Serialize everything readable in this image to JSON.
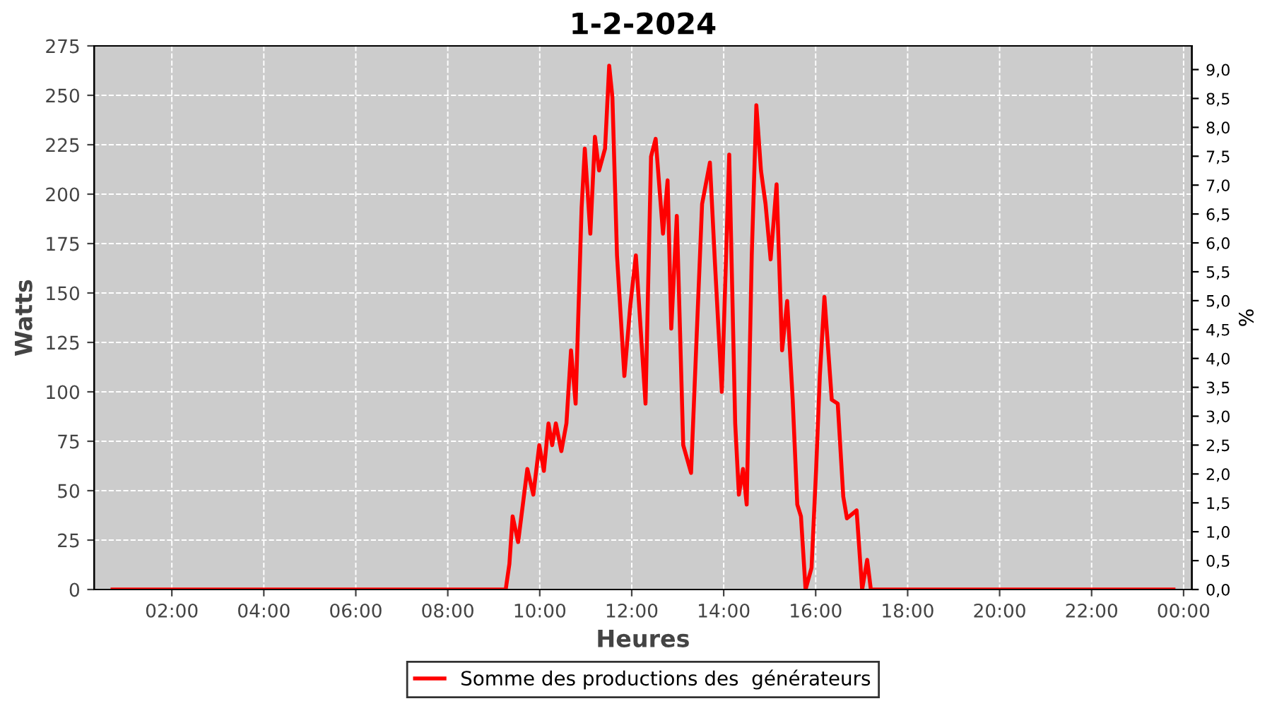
{
  "chart_data": {
    "type": "line",
    "title": "1-2-2024",
    "xlabel": "Heures",
    "ylabel": "Watts",
    "y2label": "%",
    "x": [
      0.71,
      9.26,
      9.34,
      9.41,
      9.53,
      9.73,
      9.86,
      9.99,
      10.09,
      10.19,
      10.27,
      10.35,
      10.47,
      10.58,
      10.68,
      10.78,
      10.91,
      10.98,
      11.1,
      11.2,
      11.29,
      11.42,
      11.51,
      11.58,
      11.68,
      11.84,
      11.97,
      12.09,
      12.3,
      12.42,
      12.52,
      12.68,
      12.78,
      12.86,
      12.98,
      13.12,
      13.29,
      13.53,
      13.7,
      13.81,
      13.96,
      14.12,
      14.25,
      14.33,
      14.42,
      14.5,
      14.61,
      14.71,
      14.81,
      14.91,
      15.02,
      15.15,
      15.27,
      15.38,
      15.5,
      15.6,
      15.68,
      15.78,
      15.91,
      16.01,
      16.09,
      16.19,
      16.35,
      16.48,
      16.6,
      16.68,
      16.89,
      17.01,
      17.12,
      17.2,
      23.78
    ],
    "series": [
      {
        "name": "Somme des productions des  générateurs",
        "color": "#ff0000",
        "values": [
          0,
          0,
          13,
          37,
          24,
          61,
          48,
          73,
          60,
          84,
          73,
          84,
          70,
          84,
          121,
          94,
          193,
          223,
          180,
          229,
          212,
          223,
          265,
          249,
          169,
          108,
          144,
          169,
          94,
          219,
          228,
          180,
          207,
          132,
          189,
          73,
          59,
          195,
          216,
          165,
          100,
          220,
          84,
          48,
          61,
          43,
          169,
          245,
          212,
          195,
          167,
          205,
          121,
          146,
          96,
          43,
          37,
          0,
          11,
          61,
          108,
          148,
          96,
          94,
          47,
          36,
          40,
          0,
          15,
          0,
          0
        ]
      }
    ],
    "xlim": [
      0.31,
      24.18
    ],
    "xticks": [
      {
        "value": 2,
        "label": "02:00"
      },
      {
        "value": 4,
        "label": "04:00"
      },
      {
        "value": 6,
        "label": "06:00"
      },
      {
        "value": 8,
        "label": "08:00"
      },
      {
        "value": 10,
        "label": "10:00"
      },
      {
        "value": 12,
        "label": "12:00"
      },
      {
        "value": 14,
        "label": "14:00"
      },
      {
        "value": 16,
        "label": "16:00"
      },
      {
        "value": 18,
        "label": "18:00"
      },
      {
        "value": 20,
        "label": "20:00"
      },
      {
        "value": 22,
        "label": "22:00"
      },
      {
        "value": 24,
        "label": "00:00"
      }
    ],
    "ylim": [
      0,
      275
    ],
    "yticks": [
      0,
      25,
      50,
      75,
      100,
      125,
      150,
      175,
      200,
      225,
      250,
      275
    ],
    "y2lim": [
      0,
      9.41
    ],
    "y2ticks": [
      {
        "value": 0,
        "label": "0,0"
      },
      {
        "value": 0.5,
        "label": "0,5"
      },
      {
        "value": 1,
        "label": "1,0"
      },
      {
        "value": 1.5,
        "label": "1,5"
      },
      {
        "value": 2,
        "label": "2,0"
      },
      {
        "value": 2.5,
        "label": "2,5"
      },
      {
        "value": 3,
        "label": "3,0"
      },
      {
        "value": 3.5,
        "label": "3,5"
      },
      {
        "value": 4,
        "label": "4,0"
      },
      {
        "value": 4.5,
        "label": "4,5"
      },
      {
        "value": 5,
        "label": "5,0"
      },
      {
        "value": 5.5,
        "label": "5,5"
      },
      {
        "value": 6,
        "label": "6,0"
      },
      {
        "value": 6.5,
        "label": "6,5"
      },
      {
        "value": 7,
        "label": "7,0"
      },
      {
        "value": 7.5,
        "label": "7,5"
      },
      {
        "value": 8,
        "label": "8,0"
      },
      {
        "value": 8.5,
        "label": "8,5"
      },
      {
        "value": 9,
        "label": "9,0"
      }
    ],
    "grid": true,
    "legend": "bottom",
    "line_style": "solid"
  }
}
